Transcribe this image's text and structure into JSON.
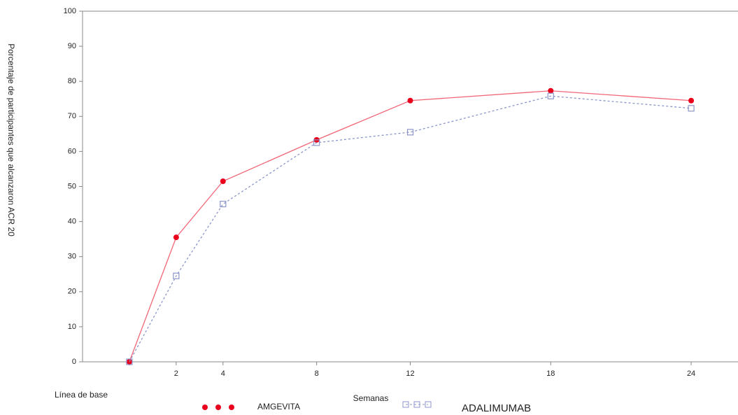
{
  "chart_data": {
    "type": "line",
    "y_label": "Porcentaje de participantes que alcanzaron ACR 20",
    "x_label": "Semanas",
    "x": [
      0,
      2,
      4,
      8,
      12,
      18,
      24
    ],
    "xlim": [
      -2,
      26
    ],
    "xticks": [
      {
        "value": 0,
        "label": "Línea de base"
      },
      2,
      4,
      8,
      12,
      18,
      24
    ],
    "ylim": [
      0,
      100
    ],
    "yticks": [
      0,
      10,
      20,
      30,
      40,
      50,
      60,
      70,
      80,
      90,
      100
    ],
    "series": [
      {
        "name": "AMGEVITA",
        "color": "#e8001c",
        "values": [
          0,
          35.5,
          51.5,
          63.3,
          74.5,
          77.3,
          74.5
        ]
      },
      {
        "name": "ADALIMUMAB",
        "color": "#8c96c8",
        "values": [
          0,
          24.5,
          45,
          62.5,
          65.5,
          75.8,
          72.3
        ]
      }
    ]
  }
}
